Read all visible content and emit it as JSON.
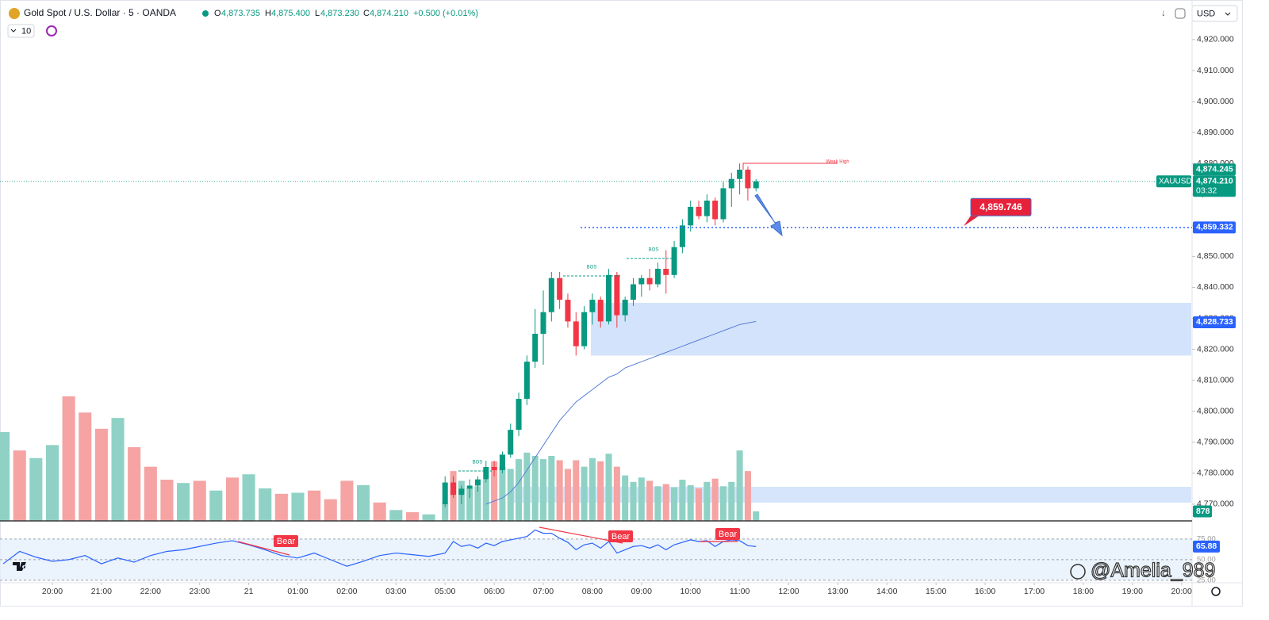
{
  "header": {
    "symbol": "Gold Spot / U.S. Dollar · 5 · OANDA",
    "ohlc": [
      {
        "key": "O",
        "value": "4,873.735"
      },
      {
        "key": "H",
        "value": "4,875.400"
      },
      {
        "key": "L",
        "value": "4,873.230"
      },
      {
        "key": "C",
        "value": "4,874.210"
      }
    ],
    "change": "+0.500 (+0.01%)",
    "indicator_count": "10",
    "currency": "USD"
  },
  "watermark": "@Amelia_989",
  "chart_data": [
    {
      "type": "candlestick",
      "x": [
        "05:00",
        "05:10",
        "05:20",
        "05:30",
        "05:40",
        "05:50",
        "06:00",
        "06:10",
        "06:20",
        "06:30",
        "06:40",
        "06:50",
        "07:00",
        "07:10",
        "07:20",
        "07:30",
        "07:40",
        "07:50",
        "08:00",
        "08:10",
        "08:20",
        "08:30",
        "08:40",
        "08:50",
        "09:00",
        "09:10",
        "09:20",
        "09:30",
        "09:40",
        "09:50",
        "10:00",
        "10:10",
        "10:20",
        "10:30",
        "10:40",
        "10:50",
        "11:00",
        "11:10",
        "11:20"
      ],
      "open": [
        4770,
        4777,
        4773,
        4775,
        4776,
        4778,
        4782,
        4781,
        4786,
        4794,
        4804,
        4816,
        4825,
        4832,
        4843,
        4836,
        4829,
        4821,
        4832,
        4836,
        4829,
        4844,
        4831,
        4836,
        4841,
        4843,
        4841,
        4846,
        4844,
        4853,
        4860,
        4866,
        4863,
        4868,
        4862,
        4872,
        4875,
        4878,
        4872
      ],
      "high": [
        4779,
        4779,
        4776,
        4778,
        4779,
        4784,
        4784,
        4787,
        4796,
        4806,
        4818,
        4833,
        4839,
        4845,
        4845,
        4838,
        4832,
        4834,
        4838,
        4837,
        4846,
        4845,
        4837,
        4843,
        4844,
        4846,
        4848,
        4852,
        4855,
        4862,
        4868,
        4868,
        4870,
        4869,
        4874,
        4877,
        4880,
        4879,
        4875
      ],
      "low": [
        4769,
        4772,
        4770,
        4772,
        4774,
        4777,
        4779,
        4780,
        4785,
        4792,
        4802,
        4814,
        4815,
        4829,
        4833,
        4827,
        4818,
        4820,
        4828,
        4827,
        4828,
        4827,
        4829,
        4834,
        4837,
        4839,
        4840,
        4838,
        4843,
        4851,
        4858,
        4862,
        4861,
        4860,
        4861,
        4866,
        4870,
        4868,
        4871
      ],
      "close": [
        4777,
        4773,
        4775,
        4776,
        4778,
        4782,
        4781,
        4786,
        4794,
        4804,
        4816,
        4825,
        4832,
        4843,
        4836,
        4829,
        4821,
        4832,
        4836,
        4829,
        4844,
        4831,
        4836,
        4841,
        4843,
        4841,
        4846,
        4844,
        4853,
        4860,
        4866,
        4863,
        4868,
        4862,
        4872,
        4875,
        4878,
        4872,
        4874.21
      ],
      "up_color": "#089981",
      "down_color": "#f23645",
      "series": [
        {
          "color": "#5b7fd6",
          "values": [
            null,
            null,
            null,
            null,
            null,
            4770,
            4771,
            4772,
            4774,
            4777,
            4781,
            4785,
            4789,
            4793,
            4797,
            4800,
            4803,
            4805,
            4807,
            4809,
            4811,
            4812,
            4814,
            4815,
            4816,
            4817,
            4818,
            4819,
            4820,
            4821,
            4822,
            4823,
            4824,
            4825,
            4826,
            4827,
            4828,
            4828.5,
            4829
          ]
        }
      ],
      "ylim": [
        4764.6,
        4925.1
      ],
      "yticks": [
        {
          "value": 4920,
          "label": "4,920.000"
        },
        {
          "value": 4910,
          "label": "4,910.000"
        },
        {
          "value": 4900,
          "label": "4,900.000"
        },
        {
          "value": 4890,
          "label": "4,890.000"
        },
        {
          "value": 4880,
          "label": "4,880.000"
        },
        {
          "value": 4870,
          "label": "4,870.000"
        },
        {
          "value": 4860,
          "label": "4,860.000"
        },
        {
          "value": 4850,
          "label": "4,850.000"
        },
        {
          "value": 4840,
          "label": "4,840.000"
        },
        {
          "value": 4830,
          "label": "4,830.000"
        },
        {
          "value": 4820,
          "label": "4,820.000"
        },
        {
          "value": 4810,
          "label": "4,810.000"
        },
        {
          "value": 4800,
          "label": "4,800.000"
        },
        {
          "value": 4790,
          "label": "4,790.000"
        },
        {
          "value": 4780,
          "label": "4,780.000"
        },
        {
          "value": 4770,
          "label": "4,770.000"
        }
      ],
      "xticks": [
        "20:00",
        "21:00",
        "22:00",
        "23:00",
        "21",
        "01:00",
        "02:00",
        "03:00",
        "05:00",
        "06:00",
        "07:00",
        "08:00",
        "09:00",
        "10:00",
        "11:00",
        "12:00",
        "13:00",
        "14:00",
        "15:00",
        "16:00",
        "17:00",
        "18:00",
        "19:00",
        "20:00"
      ],
      "zones": [
        {
          "low": 4818,
          "high": 4835,
          "color": "#d3e3fb"
        }
      ],
      "symbol_tag": "XAUUSD",
      "countdown": "03:32",
      "price_tags": [
        {
          "value": 4874.245,
          "label": "4,874.245",
          "color": "#089981"
        },
        {
          "value": 4874.21,
          "label": "4,874.210",
          "color": "#089981"
        },
        {
          "value": 4859.332,
          "label": "4,859.332",
          "color": "#2962ff"
        },
        {
          "value": 4828.733,
          "label": "4,828.733",
          "color": "#2962ff"
        }
      ],
      "annotations": {
        "bos": [
          "BOS",
          "BOS",
          "BOS"
        ],
        "weak_high": "Weak High",
        "target": {
          "value": 4859.746,
          "label": "4,859.746"
        }
      }
    },
    {
      "type": "bar",
      "x": [
        "19:00",
        "19:20",
        "19:40",
        "20:00",
        "20:20",
        "20:40",
        "21:00",
        "21:20",
        "21:40",
        "22:00",
        "22:20",
        "22:40",
        "23:00",
        "23:20",
        "23:40",
        "00:00",
        "00:20",
        "00:40",
        "01:00",
        "01:20",
        "01:40",
        "02:00",
        "02:20",
        "02:40",
        "03:00",
        "03:20",
        "03:40",
        "05:00",
        "05:10",
        "05:20",
        "05:30",
        "05:40",
        "05:50",
        "06:00",
        "06:10",
        "06:20",
        "06:30",
        "06:40",
        "06:50",
        "07:00",
        "07:10",
        "07:20",
        "07:30",
        "07:40",
        "07:50",
        "08:00",
        "08:10",
        "08:20",
        "08:30",
        "08:40",
        "08:50",
        "09:00",
        "09:10",
        "09:20",
        "09:30",
        "09:40",
        "09:50",
        "10:00",
        "10:10",
        "10:20",
        "10:30",
        "10:40",
        "10:50",
        "11:00",
        "11:10",
        "11:20"
      ],
      "values": [
        8200,
        6500,
        5800,
        7000,
        11500,
        10000,
        8500,
        9500,
        6800,
        5000,
        3800,
        3500,
        3700,
        2800,
        4000,
        4300,
        3000,
        2500,
        2600,
        2800,
        2000,
        3700,
        3300,
        1700,
        1000,
        800,
        600,
        1600,
        4600,
        3700,
        3000,
        3200,
        3800,
        5500,
        5000,
        4800,
        5700,
        6300,
        6000,
        5700,
        6000,
        5600,
        4800,
        5600,
        5000,
        5800,
        5500,
        6200,
        5000,
        4200,
        3600,
        4000,
        3700,
        3200,
        3400,
        3100,
        3800,
        3300,
        3000,
        3600,
        3900,
        3200,
        3600,
        6500,
        4600,
        878
      ],
      "colors": [
        "#8fd2c5",
        "#f5a3a3",
        "#8fd2c5",
        "#8fd2c5",
        "#f5a3a3",
        "#f5a3a3",
        "#f5a3a3",
        "#8fd2c5",
        "#f5a3a3",
        "#f5a3a3",
        "#f5a3a3",
        "#8fd2c5",
        "#f5a3a3",
        "#8fd2c5",
        "#f5a3a3",
        "#8fd2c5",
        "#8fd2c5",
        "#f5a3a3",
        "#8fd2c5",
        "#f5a3a3",
        "#f5a3a3",
        "#f5a3a3",
        "#8fd2c5",
        "#f5a3a3",
        "#8fd2c5",
        "#f5a3a3",
        "#8fd2c5",
        "#8fd2c5",
        "#f5a3a3",
        "#8fd2c5",
        "#8fd2c5",
        "#8fd2c5",
        "#8fd2c5",
        "#f5a3a3",
        "#8fd2c5",
        "#8fd2c5",
        "#8fd2c5",
        "#8fd2c5",
        "#8fd2c5",
        "#8fd2c5",
        "#8fd2c5",
        "#f5a3a3",
        "#f5a3a3",
        "#f5a3a3",
        "#8fd2c5",
        "#8fd2c5",
        "#f5a3a3",
        "#8fd2c5",
        "#f5a3a3",
        "#8fd2c5",
        "#8fd2c5",
        "#8fd2c5",
        "#f5a3a3",
        "#8fd2c5",
        "#f5a3a3",
        "#8fd2c5",
        "#8fd2c5",
        "#8fd2c5",
        "#f5a3a3",
        "#8fd2c5",
        "#f5a3a3",
        "#8fd2c5",
        "#8fd2c5",
        "#8fd2c5",
        "#f5a3a3",
        "#8fd2c5"
      ],
      "ylim": [
        0,
        12000
      ],
      "tags": [
        {
          "value": 878,
          "label": "878",
          "color": "#089981"
        }
      ]
    },
    {
      "type": "line",
      "x": [
        "19:00",
        "19:20",
        "19:40",
        "20:00",
        "20:20",
        "20:40",
        "21:00",
        "21:20",
        "21:40",
        "22:00",
        "22:20",
        "22:40",
        "23:00",
        "23:20",
        "23:40",
        "00:00",
        "00:20",
        "00:40",
        "01:00",
        "01:20",
        "01:40",
        "02:00",
        "02:20",
        "02:40",
        "03:00",
        "03:20",
        "03:40",
        "05:00",
        "05:10",
        "05:20",
        "05:30",
        "05:40",
        "05:50",
        "06:00",
        "06:10",
        "06:20",
        "06:30",
        "06:40",
        "06:50",
        "07:00",
        "07:10",
        "07:20",
        "07:30",
        "07:40",
        "07:50",
        "08:00",
        "08:10",
        "08:20",
        "08:30",
        "08:40",
        "08:50",
        "09:00",
        "09:10",
        "09:20",
        "09:30",
        "09:40",
        "09:50",
        "10:00",
        "10:10",
        "10:20",
        "10:30",
        "10:40",
        "10:50",
        "11:00",
        "11:10",
        "11:20"
      ],
      "values": [
        45,
        60,
        53,
        48,
        50,
        55,
        45,
        52,
        47,
        55,
        60,
        62,
        66,
        70,
        73,
        68,
        62,
        55,
        52,
        58,
        50,
        42,
        48,
        55,
        58,
        56,
        54,
        58,
        72,
        66,
        68,
        64,
        70,
        67,
        72,
        74,
        76,
        78,
        86,
        82,
        82,
        76,
        71,
        62,
        68,
        70,
        64,
        72,
        58,
        62,
        66,
        67,
        64,
        68,
        62,
        68,
        71,
        74,
        72,
        73,
        66,
        72,
        74,
        73,
        67,
        65.88
      ],
      "color": "#2962ff",
      "ylim": [
        22,
        97
      ],
      "yticks": [
        {
          "value": 75,
          "label": "75.00"
        },
        {
          "value": 50,
          "label": "50.00"
        },
        {
          "value": 25,
          "label": "25.00"
        }
      ],
      "tags": [
        {
          "value": 65.88,
          "label": "65.88",
          "color": "#2962ff"
        }
      ],
      "annotations": [
        "Bear",
        "Bear",
        "Bear"
      ]
    }
  ]
}
